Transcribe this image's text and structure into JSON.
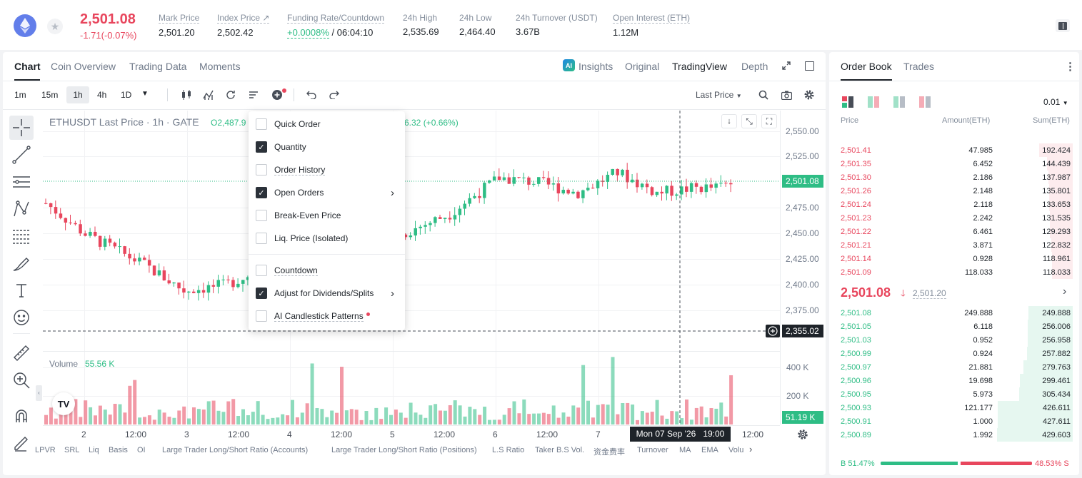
{
  "header": {
    "price": "2,501.08",
    "change": "-1.71(-0.07%)",
    "stats": [
      {
        "label": "Mark Price",
        "value": "2,501.20"
      },
      {
        "label": "Index Price ↗",
        "value": "2,502.42"
      },
      {
        "label": "Funding Rate/Countdown",
        "value_green": "+0.0008%",
        "value": " / 06:04:10"
      },
      {
        "label": "24h High",
        "value": "2,535.69"
      },
      {
        "label": "24h Low",
        "value": "2,464.40"
      },
      {
        "label": "24h Turnover (USDT)",
        "value": "3.67B"
      },
      {
        "label": "Open Interest (ETH)",
        "value": "1.12M"
      }
    ]
  },
  "chart_tabs": {
    "tabs": [
      "Chart",
      "Coin Overview",
      "Trading Data",
      "Moments"
    ],
    "active": "Chart",
    "right": [
      "Insights",
      "Original",
      "TradingView",
      "Depth"
    ],
    "right_active": "TradingView"
  },
  "toolbar": {
    "intervals": [
      "1m",
      "15m",
      "1h",
      "4h",
      "1D"
    ],
    "active_interval": "1h",
    "price_type": "Last Price"
  },
  "legend": {
    "symbol": "ETHUSDT Last Price · 1h · GATE",
    "ohlc": "O2,487.9",
    "change": "6.32 (+0.66%)"
  },
  "price_axis": [
    "2,550.00",
    "2,525.00",
    "2,500.00",
    "2,475.00",
    "2,450.00",
    "2,425.00",
    "2,400.00",
    "2,375.00"
  ],
  "price_tags": {
    "last": "2,501.08",
    "cursor": "2,355.02"
  },
  "volume": {
    "label": "Volume",
    "value": "55.56 K",
    "axis": [
      "400 K",
      "200 K"
    ],
    "last": "51.19 K"
  },
  "time_axis": [
    "2",
    "12:00",
    "3",
    "12:00",
    "4",
    "12:00",
    "5",
    "12:00",
    "6",
    "12:00",
    "7",
    "12:00"
  ],
  "crosshair_time": "Mon 07 Sep '26   19:00",
  "indicators": [
    "LPVR",
    "SRL",
    "Liq",
    "Basis",
    "OI",
    "Large Trader Long/Short Ratio (Accounts)",
    "Large Trader Long/Short Ratio (Positions)",
    "L.S Ratio",
    "Taker B.S Vol.",
    "资金费率",
    "Turnover",
    "MA",
    "EMA",
    "Volu"
  ],
  "menu": {
    "items": [
      {
        "label": "Quick Order",
        "checked": false
      },
      {
        "label": "Quantity",
        "checked": true
      },
      {
        "label": "Order History",
        "checked": false
      },
      {
        "label": "Open Orders",
        "checked": true,
        "submenu": true
      },
      {
        "label": "Break-Even Price",
        "checked": false
      },
      {
        "label": "Liq. Price (Isolated)",
        "checked": false
      },
      {
        "label": "Countdown",
        "checked": false
      },
      {
        "label": "Adjust for Dividends/Splits",
        "checked": true,
        "submenu": true
      },
      {
        "label": "AI Candlestick Patterns",
        "checked": false
      }
    ]
  },
  "orderbook": {
    "tabs": [
      "Order Book",
      "Trades"
    ],
    "precision": "0.01",
    "headers": [
      "Price",
      "Amount(ETH)",
      "Sum(ETH)"
    ],
    "asks": [
      [
        "2,501.41",
        "47.985",
        "192.424"
      ],
      [
        "2,501.35",
        "6.452",
        "144.439"
      ],
      [
        "2,501.30",
        "2.186",
        "137.987"
      ],
      [
        "2,501.26",
        "2.148",
        "135.801"
      ],
      [
        "2,501.24",
        "2.118",
        "133.653"
      ],
      [
        "2,501.23",
        "2.242",
        "131.535"
      ],
      [
        "2,501.22",
        "6.461",
        "129.293"
      ],
      [
        "2,501.21",
        "3.871",
        "122.832"
      ],
      [
        "2,501.14",
        "0.928",
        "118.961"
      ],
      [
        "2,501.09",
        "118.033",
        "118.033"
      ]
    ],
    "mid_price": "2,501.08",
    "mid_mark": "2,501.20",
    "bids": [
      [
        "2,501.08",
        "249.888",
        "249.888"
      ],
      [
        "2,501.05",
        "6.118",
        "256.006"
      ],
      [
        "2,501.03",
        "0.952",
        "256.958"
      ],
      [
        "2,500.99",
        "0.924",
        "257.882"
      ],
      [
        "2,500.97",
        "21.881",
        "279.763"
      ],
      [
        "2,500.96",
        "19.698",
        "299.461"
      ],
      [
        "2,500.95",
        "5.973",
        "305.434"
      ],
      [
        "2,500.93",
        "121.177",
        "426.611"
      ],
      [
        "2,500.91",
        "1.000",
        "427.611"
      ],
      [
        "2,500.89",
        "1.992",
        "429.603"
      ]
    ],
    "buy_ratio": "B 51.47%",
    "sell_ratio": "48.53% S",
    "buy_pct": 51.47
  },
  "colors": {
    "up": "#2ebd85",
    "down": "#e8465d"
  }
}
